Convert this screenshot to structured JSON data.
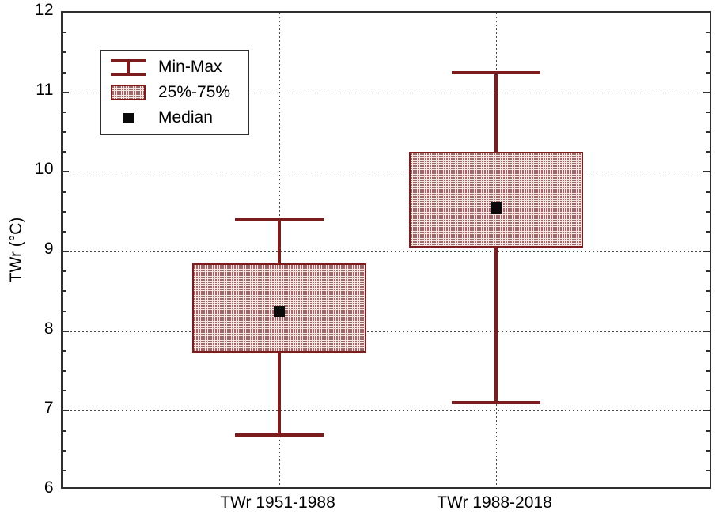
{
  "figure": {
    "background": "#ffffff",
    "accent_color": "#7d1c1c",
    "box_fill_base": "#f5e6e6",
    "box_fill_dot": "#935050",
    "median_color": "#0a0a0a",
    "frame_color": "#2f2f2f",
    "grid_color": "#4a4a4a"
  },
  "legend": {
    "items": [
      {
        "symbol": "minmax-whisker-icon",
        "label": "Min-Max"
      },
      {
        "symbol": "box-25-75-icon",
        "label": "25%-75%"
      },
      {
        "symbol": "median-square-icon",
        "label": "Median"
      }
    ]
  },
  "chart_data": {
    "type": "box",
    "title": "",
    "xlabel": "",
    "ylabel": "TWr (°C)",
    "ylim": [
      6,
      12
    ],
    "y_major_step": 1,
    "y_minor_step": 0.25,
    "y_tick_labels": [
      "6",
      "7",
      "8",
      "9",
      "10",
      "11",
      "12"
    ],
    "grid": "dotted horizontal at major ticks, dotted vertical at category centers",
    "legend_position": "top-left inside plot",
    "legend_entries": [
      "Min-Max",
      "25%-75%",
      "Median"
    ],
    "categories": [
      "TWr 1951-1988",
      "TWr 1988-2018"
    ],
    "series": [
      {
        "name": "TWr 1951-1988",
        "min": 6.7,
        "q1": 7.73,
        "median": 8.25,
        "q3": 8.85,
        "max": 9.4
      },
      {
        "name": "TWr 1988-2018",
        "min": 7.1,
        "q1": 9.05,
        "median": 9.55,
        "q3": 10.25,
        "max": 11.25
      }
    ]
  }
}
